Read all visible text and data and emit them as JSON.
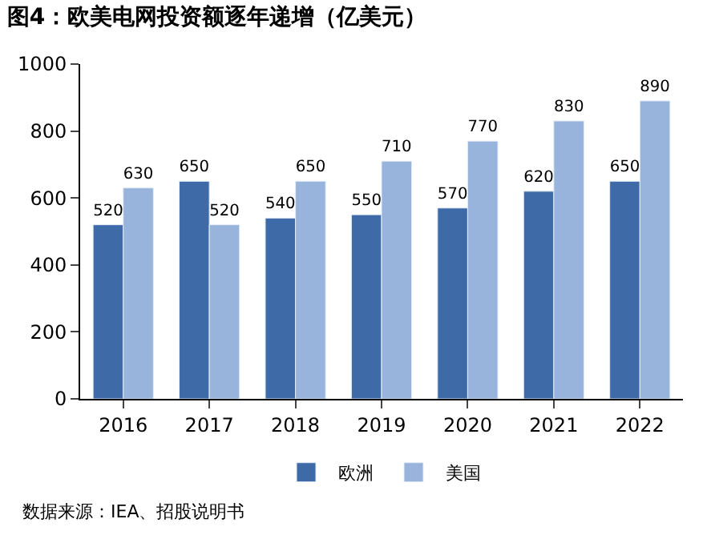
{
  "chart_data": {
    "type": "bar",
    "title": "图4：欧美电网投资额逐年递增（亿美元）",
    "categories": [
      "2016",
      "2017",
      "2018",
      "2019",
      "2020",
      "2021",
      "2022"
    ],
    "series": [
      {
        "name": "欧洲",
        "color": "#3e6aa8",
        "values": [
          520,
          650,
          540,
          550,
          570,
          620,
          650
        ]
      },
      {
        "name": "美国",
        "color": "#98b4dc",
        "values": [
          630,
          520,
          650,
          710,
          770,
          830,
          890
        ]
      }
    ],
    "ylim": [
      0,
      1000
    ],
    "yticks": [
      0,
      200,
      400,
      600,
      800,
      1000
    ],
    "legend": "bottom",
    "data_labels": true,
    "annotations": [
      "数据来源：IEA、招股说明书"
    ]
  }
}
